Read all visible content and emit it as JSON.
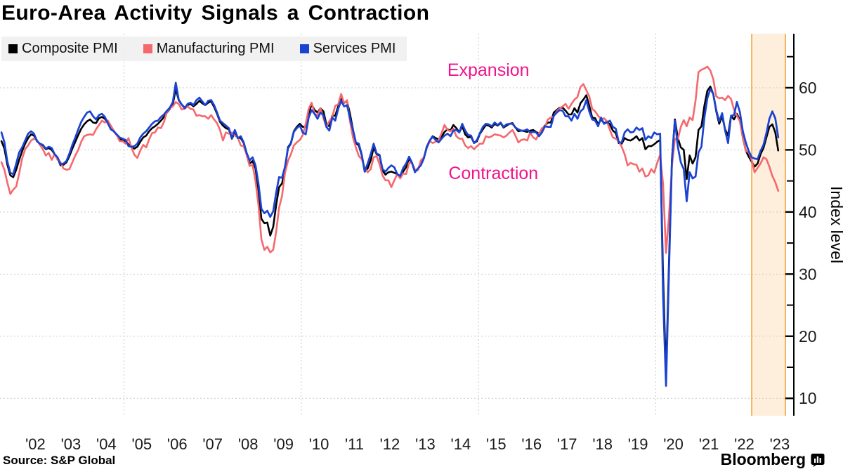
{
  "title": "Euro-Area Activity Signals a Contraction",
  "source": "Source: S&P Global",
  "brand": {
    "name": "Bloomberg",
    "icon": "bloomberg-chart-bars-icon"
  },
  "legend": [
    {
      "label": "Composite PMI",
      "color": "#000000"
    },
    {
      "label": "Manufacturing PMI",
      "color": "#f4696e"
    },
    {
      "label": "Services PMI",
      "color": "#1a43d2"
    }
  ],
  "chart_data": {
    "type": "line",
    "title": "Euro-Area Activity Signals a Contraction",
    "xlabel": "",
    "ylabel": "Index level",
    "x_unit": "decimal year, monthly observations",
    "x_start": 2001.542,
    "x_interval_months": 1,
    "x_domain": [
      2001.5,
      2023.66
    ],
    "y_domain": [
      7.2,
      68.7
    ],
    "grid_on": true,
    "grid_color": "#c9c9c9",
    "axis_color": "#000000",
    "tick_text_color": "#1a1a1a",
    "legend_position": "top-left",
    "y_ticks_labeled": [
      10,
      20,
      30,
      40,
      50,
      60
    ],
    "y_ticks_minor": [
      15,
      25,
      35,
      45,
      55,
      65
    ],
    "x_gridline_years": [
      2005,
      2010,
      2015,
      2020
    ],
    "x_ticks": [
      {
        "year": 2002,
        "label": "'02"
      },
      {
        "year": 2003,
        "label": "'03"
      },
      {
        "year": 2004,
        "label": "'04"
      },
      {
        "year": 2005,
        "label": "'05"
      },
      {
        "year": 2006,
        "label": "'06"
      },
      {
        "year": 2007,
        "label": "'07"
      },
      {
        "year": 2008,
        "label": "'08"
      },
      {
        "year": 2009,
        "label": "'09"
      },
      {
        "year": 2010,
        "label": "'10"
      },
      {
        "year": 2011,
        "label": "'11"
      },
      {
        "year": 2012,
        "label": "'12"
      },
      {
        "year": 2013,
        "label": "'13"
      },
      {
        "year": 2014,
        "label": "'14"
      },
      {
        "year": 2015,
        "label": "'15"
      },
      {
        "year": 2016,
        "label": "'16"
      },
      {
        "year": 2017,
        "label": "'17"
      },
      {
        "year": 2018,
        "label": "'18"
      },
      {
        "year": 2019,
        "label": "'19"
      },
      {
        "year": 2020,
        "label": "'20"
      },
      {
        "year": 2021,
        "label": "'21"
      },
      {
        "year": 2022,
        "label": "'22"
      },
      {
        "year": 2023,
        "label": "'23"
      }
    ],
    "highlight_band": {
      "from": 2022.71,
      "to": 2023.66,
      "fill": "#fdefdb",
      "border": "#f3a43e"
    },
    "annotations": [
      {
        "text": "Expansion",
        "x": 2015.28,
        "y": 62.8,
        "color": "#f0148c"
      },
      {
        "text": "Contraction",
        "x": 2015.42,
        "y": 46.2,
        "color": "#f0148c"
      }
    ],
    "series": [
      {
        "name": "Composite PMI",
        "color": "#000000",
        "width": 2.6,
        "values": [
          51.4,
          50.2,
          47.6,
          45.9,
          45.6,
          46.8,
          48.4,
          49.8,
          51.0,
          51.9,
          52.5,
          52.3,
          51.4,
          51.0,
          50.7,
          50.1,
          50.3,
          50.0,
          49.3,
          48.7,
          47.5,
          47.6,
          48.0,
          49.0,
          50.2,
          51.3,
          52.4,
          53.4,
          54.1,
          54.6,
          54.9,
          54.4,
          54.3,
          55.1,
          55.3,
          55.0,
          54.3,
          53.4,
          53.0,
          52.4,
          51.8,
          51.6,
          51.4,
          50.9,
          50.4,
          50.2,
          50.5,
          51.3,
          52.0,
          52.3,
          53.0,
          53.5,
          53.8,
          54.2,
          54.7,
          55.3,
          56.0,
          56.6,
          57.3,
          59.8,
          58.0,
          57.3,
          56.8,
          57.2,
          57.4,
          57.0,
          57.4,
          57.9,
          57.5,
          57.2,
          57.6,
          57.8,
          56.9,
          55.8,
          54.5,
          53.9,
          53.5,
          53.3,
          51.8,
          52.8,
          51.9,
          51.9,
          51.1,
          49.3,
          47.8,
          48.2,
          47.0,
          43.6,
          38.9,
          38.2,
          38.3,
          36.2,
          37.6,
          41.1,
          44.0,
          44.6,
          47.0,
          50.4,
          51.1,
          53.0,
          53.7,
          54.2,
          53.7,
          53.7,
          55.9,
          57.3,
          56.4,
          56.0,
          56.7,
          56.2,
          54.1,
          53.8,
          55.5,
          55.5,
          57.0,
          58.2,
          57.6,
          57.8,
          55.8,
          53.3,
          51.1,
          50.7,
          49.1,
          46.5,
          47.0,
          48.3,
          50.4,
          49.3,
          49.1,
          46.7,
          46.0,
          46.4,
          46.5,
          46.3,
          46.1,
          45.7,
          46.5,
          47.2,
          48.6,
          47.9,
          46.5,
          46.9,
          47.7,
          48.7,
          50.5,
          51.5,
          52.2,
          51.9,
          51.7,
          52.1,
          52.9,
          53.3,
          53.1,
          54.0,
          53.5,
          52.8,
          53.8,
          52.5,
          52.0,
          52.1,
          51.1,
          51.4,
          52.6,
          53.3,
          54.0,
          53.9,
          53.6,
          54.2,
          53.9,
          54.3,
          53.6,
          53.9,
          54.2,
          54.3,
          53.6,
          53.0,
          53.1,
          53.0,
          52.9,
          53.1,
          53.2,
          52.9,
          52.6,
          53.3,
          53.9,
          54.4,
          54.4,
          56.0,
          56.4,
          56.8,
          56.8,
          56.3,
          55.7,
          55.7,
          56.7,
          56.0,
          57.5,
          58.1,
          58.8,
          57.1,
          55.2,
          55.1,
          54.1,
          54.9,
          54.3,
          54.5,
          54.1,
          53.1,
          52.7,
          51.1,
          51.0,
          51.9,
          51.6,
          51.5,
          51.8,
          52.2,
          51.5,
          51.9,
          50.1,
          50.6,
          50.6,
          50.9,
          51.3,
          51.6,
          29.7,
          13.6,
          31.9,
          48.5,
          54.9,
          51.9,
          50.4,
          50.0,
          45.3,
          49.1,
          47.8,
          48.8,
          53.2,
          53.8,
          57.1,
          59.5,
          60.2,
          59.0,
          56.2,
          54.2,
          55.4,
          53.3,
          52.3,
          55.5,
          54.9,
          55.8,
          54.8,
          52.0,
          49.9,
          48.9,
          48.1,
          47.3,
          47.8,
          49.3,
          50.3,
          52.0,
          53.7,
          54.1,
          52.8,
          49.9
        ]
      },
      {
        "name": "Manufacturing PMI",
        "color": "#f4696e",
        "width": 2.6,
        "values": [
          48.0,
          46.8,
          44.7,
          42.9,
          43.6,
          44.1,
          46.2,
          48.6,
          50.1,
          50.7,
          51.5,
          51.8,
          51.6,
          50.8,
          50.1,
          49.1,
          49.5,
          48.4,
          49.3,
          48.4,
          48.0,
          47.0,
          46.8,
          46.9,
          48.0,
          49.1,
          50.0,
          51.3,
          52.2,
          52.4,
          52.5,
          52.4,
          53.3,
          54.0,
          54.7,
          54.4,
          54.7,
          53.9,
          53.1,
          52.4,
          51.4,
          51.4,
          51.0,
          51.9,
          50.4,
          49.2,
          48.7,
          49.9,
          50.8,
          50.4,
          51.7,
          52.7,
          52.8,
          53.6,
          53.5,
          54.5,
          56.1,
          56.7,
          57.0,
          57.7,
          57.4,
          56.5,
          56.6,
          57.0,
          56.6,
          56.5,
          55.5,
          55.6,
          55.4,
          55.4,
          55.0,
          55.6,
          54.9,
          54.3,
          53.2,
          51.5,
          52.8,
          52.6,
          52.8,
          52.3,
          52.0,
          50.7,
          50.6,
          49.2,
          47.4,
          47.6,
          45.0,
          41.1,
          35.6,
          33.9,
          34.4,
          33.5,
          33.9,
          36.8,
          40.7,
          42.6,
          46.3,
          48.2,
          49.3,
          50.7,
          51.2,
          51.6,
          52.4,
          54.2,
          56.6,
          57.6,
          55.8,
          55.6,
          56.7,
          55.1,
          53.7,
          54.6,
          55.3,
          57.1,
          57.3,
          59.0,
          57.5,
          58.0,
          54.6,
          52.0,
          50.4,
          49.0,
          48.5,
          47.1,
          46.4,
          46.9,
          48.8,
          49.0,
          47.7,
          45.9,
          45.1,
          45.1,
          44.0,
          45.1,
          46.1,
          45.4,
          46.2,
          46.1,
          47.9,
          47.9,
          46.8,
          46.7,
          48.3,
          48.8,
          50.3,
          51.4,
          51.1,
          51.3,
          51.6,
          52.7,
          54.0,
          53.2,
          53.0,
          53.4,
          52.2,
          51.8,
          51.8,
          50.7,
          50.3,
          50.6,
          50.1,
          50.6,
          51.0,
          51.0,
          52.2,
          52.0,
          52.2,
          52.5,
          52.4,
          52.3,
          52.0,
          52.3,
          52.8,
          53.2,
          52.3,
          51.2,
          51.6,
          51.7,
          51.5,
          52.8,
          52.0,
          51.7,
          52.6,
          53.5,
          53.7,
          54.9,
          55.2,
          55.4,
          56.2,
          56.7,
          57.0,
          57.4,
          56.6,
          57.4,
          58.1,
          58.5,
          60.1,
          60.6,
          59.6,
          58.6,
          56.6,
          56.2,
          55.5,
          54.9,
          55.1,
          54.6,
          53.2,
          52.0,
          51.8,
          51.4,
          50.5,
          49.3,
          47.5,
          47.9,
          47.7,
          47.6,
          46.5,
          47.0,
          45.7,
          45.9,
          46.9,
          46.3,
          47.9,
          49.2,
          44.5,
          33.4,
          39.4,
          47.4,
          51.8,
          51.7,
          53.7,
          54.8,
          53.8,
          55.2,
          54.8,
          57.9,
          62.5,
          62.9,
          63.1,
          63.4,
          62.8,
          61.4,
          58.6,
          58.3,
          58.4,
          58.0,
          58.7,
          58.2,
          56.5,
          55.5,
          54.6,
          52.1,
          49.8,
          49.6,
          48.4,
          46.4,
          47.1,
          47.8,
          48.8,
          48.5,
          47.3,
          45.8,
          44.8,
          43.4
        ]
      },
      {
        "name": "Services PMI",
        "color": "#1a43d2",
        "width": 2.7,
        "values": [
          52.8,
          51.2,
          48.1,
          46.3,
          46.1,
          47.8,
          49.6,
          50.4,
          51.5,
          52.6,
          53.0,
          52.6,
          51.4,
          51.0,
          50.8,
          50.2,
          50.5,
          50.3,
          49.3,
          48.8,
          47.7,
          47.8,
          48.2,
          49.4,
          50.8,
          52.0,
          53.3,
          54.5,
          55.3,
          56.0,
          56.2,
          55.4,
          54.9,
          55.6,
          55.8,
          55.3,
          54.3,
          53.3,
          53.0,
          52.5,
          52.0,
          51.8,
          51.6,
          50.6,
          50.5,
          50.6,
          51.0,
          52.0,
          52.6,
          53.0,
          53.6,
          54.2,
          54.6,
          54.7,
          55.3,
          55.7,
          56.3,
          56.8,
          57.7,
          60.8,
          58.1,
          57.3,
          56.7,
          57.4,
          57.6,
          57.2,
          58.0,
          58.4,
          57.8,
          57.2,
          57.9,
          58.0,
          57.2,
          56.0,
          54.7,
          54.3,
          53.9,
          53.5,
          51.9,
          53.2,
          51.9,
          52.2,
          51.2,
          49.5,
          48.3,
          48.8,
          47.5,
          44.6,
          40.5,
          39.8,
          40.2,
          39.2,
          40.1,
          43.1,
          45.6,
          45.5,
          47.3,
          50.2,
          51.0,
          52.9,
          53.5,
          53.9,
          52.8,
          52.5,
          55.2,
          56.4,
          55.8,
          55.0,
          56.0,
          55.6,
          53.7,
          53.1,
          55.2,
          54.7,
          56.6,
          57.9,
          57.0,
          57.2,
          55.1,
          53.2,
          51.2,
          51.0,
          49.2,
          46.5,
          47.8,
          49.3,
          51.0,
          49.4,
          49.2,
          46.9,
          46.5,
          47.1,
          47.5,
          47.2,
          46.1,
          45.8,
          47.1,
          47.8,
          48.9,
          47.9,
          46.4,
          47.0,
          47.5,
          48.6,
          50.4,
          51.5,
          52.1,
          51.6,
          51.2,
          51.8,
          52.3,
          52.6,
          52.2,
          53.1,
          53.2,
          52.8,
          54.2,
          53.1,
          52.4,
          52.3,
          51.1,
          51.6,
          52.7,
          53.7,
          54.2,
          54.1,
          53.8,
          54.4,
          54.0,
          54.4,
          53.7,
          54.1,
          54.2,
          54.2,
          53.6,
          53.3,
          53.1,
          53.1,
          53.3,
          52.8,
          52.9,
          52.8,
          52.2,
          52.8,
          53.8,
          53.7,
          53.7,
          55.5,
          56.0,
          56.4,
          56.3,
          55.4,
          55.4,
          54.7,
          55.8,
          55.0,
          56.2,
          56.6,
          58.0,
          56.2,
          54.9,
          54.7,
          53.8,
          55.2,
          54.2,
          54.4,
          54.7,
          53.7,
          53.4,
          51.2,
          51.2,
          52.8,
          53.3,
          52.8,
          52.9,
          53.6,
          53.2,
          53.5,
          51.6,
          52.2,
          51.9,
          52.8,
          52.5,
          52.6,
          26.4,
          12.0,
          30.5,
          48.3,
          54.7,
          50.5,
          48.0,
          46.9,
          41.7,
          46.4,
          45.4,
          45.7,
          49.6,
          50.5,
          55.2,
          58.3,
          59.8,
          59.0,
          56.4,
          54.6,
          55.9,
          53.1,
          51.1,
          55.5,
          55.6,
          57.7,
          56.1,
          53.0,
          51.2,
          49.8,
          48.8,
          48.6,
          48.5,
          49.8,
          50.8,
          52.7,
          55.0,
          56.2,
          55.1,
          52.0
        ]
      }
    ]
  }
}
